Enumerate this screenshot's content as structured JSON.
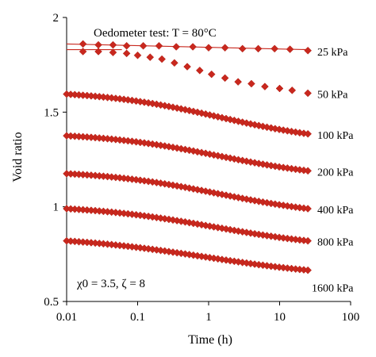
{
  "chart_data": {
    "type": "scatter",
    "title": "",
    "annotations": {
      "test": "Oedometer test: T = 80°C",
      "params": "χ0 = 3.5, ζ = 8"
    },
    "xlabel": "Time (h)",
    "ylabel": "Void ratio",
    "xscale": "log",
    "xlim": [
      0.01,
      100
    ],
    "ylim": [
      0.5,
      2.0
    ],
    "x_ticks": [
      0.01,
      0.1,
      1,
      10,
      100
    ],
    "x_tick_labels": [
      "0.01",
      "0.1",
      "1",
      "10",
      "100"
    ],
    "y_ticks": [
      0.5,
      1.0,
      1.5,
      2.0
    ],
    "y_tick_labels": [
      "0.5",
      "1",
      "1.5",
      "2"
    ],
    "grid": false,
    "marker": "diamond",
    "color": "#c8281e",
    "series": [
      {
        "name": "25 kPa",
        "line": {
          "x": [
            0.01,
            25
          ],
          "y": [
            1.86,
            1.83
          ]
        },
        "x": [
          0.017,
          0.028,
          0.045,
          0.07,
          0.12,
          0.2,
          0.35,
          0.6,
          1,
          1.7,
          3,
          5,
          8.5,
          14,
          25
        ],
        "y": [
          1.86,
          1.855,
          1.855,
          1.85,
          1.85,
          1.85,
          1.845,
          1.845,
          1.84,
          1.84,
          1.835,
          1.835,
          1.835,
          1.832,
          1.825
        ]
      },
      {
        "name": "50 kPa",
        "line": {
          "x": [
            0.01,
            0.06
          ],
          "y": [
            1.83,
            1.83
          ]
        },
        "x": [
          0.017,
          0.028,
          0.045,
          0.07,
          0.1,
          0.15,
          0.22,
          0.33,
          0.5,
          0.75,
          1.1,
          1.7,
          2.6,
          4,
          6.2,
          10,
          15,
          25
        ],
        "y": [
          1.82,
          1.82,
          1.815,
          1.81,
          1.8,
          1.79,
          1.78,
          1.76,
          1.74,
          1.72,
          1.7,
          1.68,
          1.66,
          1.65,
          1.635,
          1.625,
          1.615,
          1.6
        ]
      },
      {
        "name": "100 kPa",
        "x_start": 0.01,
        "x_end": 25,
        "y_start": 1.595,
        "y_end": 1.385,
        "mid": 1.4,
        "width": 0.85
      },
      {
        "name": "200 kPa",
        "x_start": 0.01,
        "x_end": 25,
        "y_start": 1.375,
        "y_end": 1.19,
        "mid": 1.4,
        "width": 0.85
      },
      {
        "name": "400 kPa",
        "x_start": 0.01,
        "x_end": 25,
        "y_start": 1.175,
        "y_end": 0.99,
        "mid": 1.4,
        "width": 0.85
      },
      {
        "name": "800 kPa",
        "x_start": 0.01,
        "x_end": 25,
        "y_start": 0.99,
        "y_end": 0.82,
        "mid": 1.2,
        "width": 0.9
      },
      {
        "name": "1600 kPa",
        "x_start": 0.01,
        "x_end": 25,
        "y_start": 0.82,
        "y_end": 0.665,
        "mid": 0.9,
        "width": 1.0
      }
    ]
  }
}
